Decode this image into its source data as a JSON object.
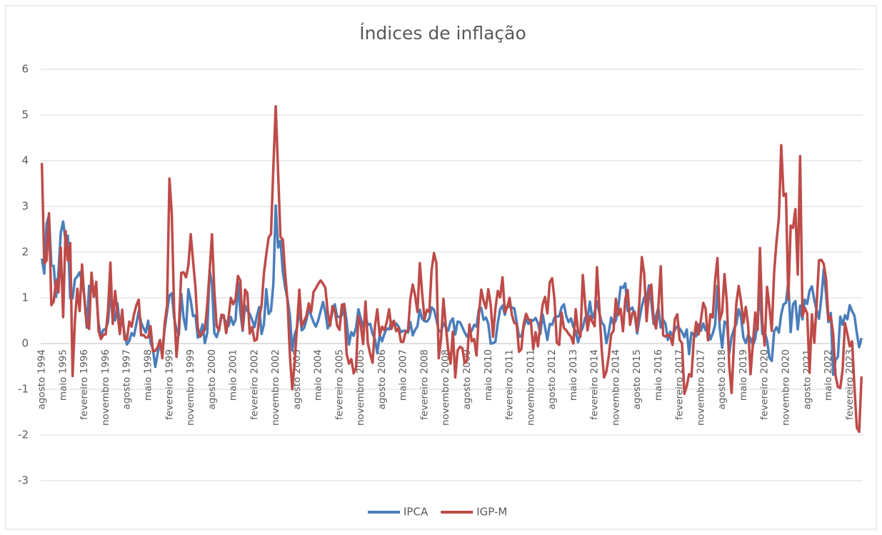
{
  "chart_data": {
    "type": "line",
    "title": "Índices de inflação",
    "categories": [
      "agosto 1994",
      null,
      null,
      null,
      null,
      null,
      null,
      null,
      null,
      "maio 1995",
      null,
      null,
      null,
      null,
      null,
      null,
      null,
      null,
      "fevereiro 1996",
      null,
      null,
      null,
      null,
      null,
      null,
      null,
      null,
      "novembro 1996",
      null,
      null,
      null,
      null,
      null,
      null,
      null,
      null,
      "agosto 1997",
      null,
      null,
      null,
      null,
      null,
      null,
      null,
      null,
      "maio 1998",
      null,
      null,
      null,
      null,
      null,
      null,
      null,
      null,
      "fevereiro 1999",
      null,
      null,
      null,
      null,
      null,
      null,
      null,
      null,
      "novembro 1999",
      null,
      null,
      null,
      null,
      null,
      null,
      null,
      null,
      "agosto 2000",
      null,
      null,
      null,
      null,
      null,
      null,
      null,
      null,
      "maio 2001",
      null,
      null,
      null,
      null,
      null,
      null,
      null,
      null,
      "fevereiro 2002",
      null,
      null,
      null,
      null,
      null,
      null,
      null,
      null,
      "novembro 2002",
      null,
      null,
      null,
      null,
      null,
      null,
      null,
      null,
      "agosto 2003",
      null,
      null,
      null,
      null,
      null,
      null,
      null,
      null,
      "maio 2004",
      null,
      null,
      null,
      null,
      null,
      null,
      null,
      null,
      "fevereiro 2005",
      null,
      null,
      null,
      null,
      null,
      null,
      null,
      null,
      "novembro 2005",
      null,
      null,
      null,
      null,
      null,
      null,
      null,
      null,
      "agosto 2006",
      null,
      null,
      null,
      null,
      null,
      null,
      null,
      null,
      "maio 2007",
      null,
      null,
      null,
      null,
      null,
      null,
      null,
      null,
      "fevereiro 2008",
      null,
      null,
      null,
      null,
      null,
      null,
      null,
      null,
      "novembro 2008",
      null,
      null,
      null,
      null,
      null,
      null,
      null,
      null,
      "agosto 2009",
      null,
      null,
      null,
      null,
      null,
      null,
      null,
      null,
      "maio 2010",
      null,
      null,
      null,
      null,
      null,
      null,
      null,
      null,
      "fevereiro 2011",
      null,
      null,
      null,
      null,
      null,
      null,
      null,
      null,
      "novembro 2011",
      null,
      null,
      null,
      null,
      null,
      null,
      null,
      null,
      "agosto 2012",
      null,
      null,
      null,
      null,
      null,
      null,
      null,
      null,
      "maio 2013",
      null,
      null,
      null,
      null,
      null,
      null,
      null,
      null,
      "fevereiro 2014",
      null,
      null,
      null,
      null,
      null,
      null,
      null,
      null,
      "novembro 2014",
      null,
      null,
      null,
      null,
      null,
      null,
      null,
      null,
      "agosto 2015",
      null,
      null,
      null,
      null,
      null,
      null,
      null,
      null,
      "maio 2016",
      null,
      null,
      null,
      null,
      null,
      null,
      null,
      null,
      "fevereiro 2017",
      null,
      null,
      null,
      null,
      null,
      null,
      null,
      null,
      "novembro 2017",
      null,
      null,
      null,
      null,
      null,
      null,
      null,
      null,
      "agosto 2018",
      null,
      null,
      null,
      null,
      null,
      null,
      null,
      null,
      "maio 2019",
      null,
      null,
      null,
      null,
      null,
      null,
      null,
      null,
      "fevereiro 2020",
      null,
      null,
      null,
      null,
      null,
      null,
      null,
      null,
      "novembro 2020",
      null,
      null,
      null,
      null,
      null,
      null,
      null,
      null,
      "agosto 2021",
      null,
      null,
      null,
      null,
      null,
      null,
      null,
      null,
      "maio 2022",
      null,
      null,
      null,
      null,
      null,
      null,
      null,
      null,
      "fevereiro 2023",
      null,
      null,
      null,
      null,
      null
    ],
    "series": [
      {
        "name": "IPCA",
        "color": "#4a7ebb",
        "values": [
          1.86,
          1.53,
          2.62,
          2.81,
          1.71,
          1.7,
          1.02,
          1.55,
          2.43,
          2.67,
          2.26,
          2.36,
          0.99,
          0.99,
          1.41,
          1.47,
          1.56,
          1.34,
          1.03,
          0.35,
          1.26,
          1.22,
          1.19,
          1.11,
          0.44,
          0.15,
          0.3,
          0.32,
          0.47,
          1.18,
          0.5,
          0.51,
          0.88,
          0.41,
          0.54,
          0.22,
          -0.02,
          0.06,
          0.23,
          0.17,
          0.43,
          0.71,
          0.46,
          0.34,
          0.24,
          0.5,
          0.02,
          -0.12,
          -0.51,
          -0.22,
          0.02,
          -0.12,
          0.33,
          0.7,
          1.05,
          1.1,
          0.56,
          0.3,
          0.19,
          1.09,
          0.56,
          0.31,
          1.19,
          0.95,
          0.6,
          0.62,
          0.13,
          0.22,
          0.42,
          0.01,
          0.23,
          1.61,
          1.31,
          0.23,
          0.14,
          0.32,
          0.59,
          0.57,
          0.46,
          0.38,
          0.58,
          0.41,
          0.52,
          1.33,
          0.7,
          0.28,
          0.83,
          0.71,
          0.65,
          0.52,
          0.36,
          0.6,
          0.8,
          0.21,
          0.42,
          1.19,
          0.65,
          0.72,
          1.31,
          3.02,
          2.1,
          2.25,
          1.57,
          1.23,
          0.97,
          0.61,
          -0.15,
          0.2,
          0.34,
          0.78,
          0.29,
          0.34,
          0.52,
          0.76,
          0.61,
          0.47,
          0.37,
          0.51,
          0.71,
          0.91,
          0.69,
          0.33,
          0.44,
          0.69,
          0.86,
          0.58,
          0.59,
          0.61,
          0.87,
          0.49,
          -0.02,
          0.25,
          0.17,
          0.35,
          0.75,
          0.55,
          0.36,
          0.59,
          0.41,
          0.43,
          0.21,
          0.1,
          -0.21,
          0.19,
          0.05,
          0.21,
          0.33,
          0.31,
          0.48,
          0.44,
          0.44,
          0.37,
          0.25,
          0.28,
          0.28,
          0.24,
          0.47,
          0.18,
          0.3,
          0.38,
          0.74,
          0.54,
          0.49,
          0.48,
          0.55,
          0.79,
          0.74,
          0.53,
          0.28,
          0.26,
          0.45,
          0.36,
          0.28,
          0.48,
          0.55,
          0.2,
          0.48,
          0.47,
          0.36,
          0.24,
          0.15,
          0.24,
          0.28,
          0.41,
          0.37,
          0.75,
          0.78,
          0.52,
          0.57,
          0.43,
          0.0,
          0.01,
          0.04,
          0.45,
          0.75,
          0.83,
          0.63,
          0.83,
          0.8,
          0.79,
          0.77,
          0.47,
          0.15,
          0.16,
          0.37,
          0.53,
          0.43,
          0.52,
          0.5,
          0.56,
          0.45,
          0.21,
          0.64,
          0.36,
          0.08,
          0.43,
          0.41,
          0.57,
          0.59,
          0.6,
          0.79,
          0.86,
          0.6,
          0.47,
          0.55,
          0.37,
          0.26,
          0.03,
          0.24,
          0.35,
          0.57,
          0.54,
          0.92,
          0.55,
          0.69,
          0.92,
          0.67,
          0.46,
          0.4,
          0.01,
          0.25,
          0.57,
          0.42,
          0.51,
          0.78,
          1.24,
          1.22,
          1.32,
          0.71,
          0.74,
          0.79,
          0.62,
          0.22,
          0.54,
          0.82,
          1.01,
          0.96,
          1.27,
          0.9,
          0.43,
          0.61,
          0.78,
          0.35,
          0.52,
          0.44,
          0.08,
          0.26,
          0.18,
          0.3,
          0.38,
          0.33,
          0.25,
          0.14,
          0.31,
          -0.23,
          0.24,
          0.19,
          0.16,
          0.42,
          0.28,
          0.44,
          0.29,
          0.32,
          0.09,
          0.22,
          0.4,
          1.26,
          0.33,
          -0.09,
          0.48,
          0.45,
          -0.21,
          0.15,
          0.32,
          0.43,
          0.75,
          0.57,
          0.13,
          0.01,
          0.19,
          0.11,
          -0.04,
          0.1,
          0.51,
          1.15,
          0.21,
          0.25,
          0.07,
          -0.31,
          -0.38,
          0.26,
          0.36,
          0.24,
          0.64,
          0.86,
          0.89,
          1.35,
          0.25,
          0.86,
          0.93,
          0.31,
          0.83,
          0.53,
          0.96,
          0.87,
          1.16,
          1.25,
          0.95,
          0.73,
          0.54,
          1.01,
          1.62,
          1.06,
          0.47,
          0.67,
          -0.68,
          -0.36,
          -0.29,
          0.59,
          0.41,
          0.62,
          0.53,
          0.84,
          0.71,
          0.61,
          0.23,
          -0.08,
          0.12
        ]
      },
      {
        "name": "IGP-M",
        "color": "#be4b48",
        "values": [
          3.95,
          1.75,
          1.82,
          2.85,
          0.84,
          0.92,
          1.39,
          1.12,
          2.1,
          0.58,
          2.46,
          1.82,
          2.2,
          -0.71,
          0.52,
          1.2,
          0.71,
          1.73,
          0.97,
          0.4,
          0.32,
          1.55,
          1.02,
          1.35,
          0.28,
          0.1,
          0.19,
          0.2,
          0.73,
          1.77,
          0.43,
          1.15,
          0.68,
          0.21,
          0.74,
          0.09,
          0.09,
          0.48,
          0.37,
          0.64,
          0.84,
          0.96,
          0.18,
          0.19,
          0.13,
          0.14,
          0.38,
          -0.17,
          -0.16,
          -0.08,
          0.08,
          -0.32,
          0.45,
          0.84,
          3.61,
          2.83,
          0.71,
          -0.29,
          0.36,
          1.55,
          1.56,
          1.45,
          1.7,
          2.39,
          1.81,
          1.24,
          0.35,
          0.15,
          0.23,
          0.31,
          0.85,
          1.57,
          2.39,
          1.16,
          0.38,
          0.29,
          0.63,
          0.62,
          0.23,
          0.56,
          1.0,
          0.86,
          0.98,
          1.48,
          1.38,
          0.31,
          1.18,
          1.1,
          0.22,
          0.36,
          0.06,
          0.09,
          0.56,
          0.83,
          1.54,
          1.95,
          2.32,
          2.4,
          3.87,
          5.19,
          3.75,
          2.33,
          2.28,
          1.53,
          0.92,
          -0.26,
          -1.0,
          -0.42,
          0.38,
          1.18,
          0.38,
          0.49,
          0.61,
          0.88,
          0.69,
          1.13,
          1.21,
          1.31,
          1.38,
          1.31,
          1.22,
          0.69,
          0.39,
          0.82,
          0.74,
          0.39,
          0.3,
          0.85,
          0.86,
          -0.22,
          -0.44,
          -0.34,
          -0.65,
          -0.53,
          0.6,
          0.4,
          -0.01,
          0.92,
          0.01,
          -0.23,
          -0.42,
          0.38,
          0.75,
          0.18,
          0.37,
          0.29,
          0.47,
          0.75,
          0.32,
          0.5,
          0.27,
          0.34,
          0.04,
          0.04,
          0.26,
          0.28,
          0.98,
          1.29,
          1.05,
          0.69,
          1.76,
          1.09,
          0.53,
          0.74,
          0.69,
          1.61,
          1.98,
          1.76,
          -0.32,
          0.11,
          0.98,
          0.38,
          -0.13,
          -0.44,
          0.26,
          -0.74,
          -0.15,
          -0.07,
          -0.1,
          -0.43,
          -0.36,
          0.42,
          0.05,
          0.1,
          -0.26,
          0.63,
          1.18,
          0.94,
          0.77,
          1.19,
          0.85,
          0.15,
          0.77,
          1.15,
          1.01,
          1.45,
          0.69,
          0.79,
          1.0,
          0.62,
          0.45,
          0.43,
          -0.18,
          -0.12,
          0.44,
          0.65,
          0.53,
          0.5,
          -0.12,
          0.25,
          -0.06,
          0.43,
          0.85,
          1.02,
          0.66,
          1.34,
          1.43,
          0.97,
          0.02,
          -0.03,
          0.68,
          0.34,
          0.29,
          0.21,
          0.15,
          0.0,
          0.75,
          0.26,
          0.15,
          1.5,
          0.86,
          0.29,
          0.6,
          0.48,
          0.38,
          1.67,
          0.78,
          -0.13,
          -0.74,
          -0.61,
          -0.27,
          0.2,
          0.28,
          0.98,
          0.62,
          0.76,
          0.27,
          0.98,
          1.17,
          0.41,
          0.67,
          0.69,
          0.28,
          0.95,
          1.89,
          1.52,
          0.49,
          1.14,
          1.29,
          0.51,
          0.33,
          0.82,
          1.69,
          0.18,
          0.15,
          0.2,
          0.16,
          -0.03,
          0.54,
          0.64,
          0.08,
          0.01,
          -1.1,
          -0.93,
          -0.67,
          -0.72,
          0.1,
          0.47,
          0.2,
          0.52,
          0.89,
          0.76,
          0.07,
          0.64,
          0.57,
          1.38,
          1.87,
          0.51,
          0.7,
          1.52,
          0.89,
          -0.49,
          -1.08,
          0.01,
          0.88,
          1.26,
          0.92,
          0.45,
          0.8,
          0.4,
          -0.67,
          -0.01,
          0.68,
          0.3,
          2.09,
          0.48,
          -0.04,
          1.24,
          0.8,
          0.28,
          1.56,
          2.23,
          2.74,
          4.34,
          3.23,
          3.28,
          0.96,
          2.58,
          2.53,
          2.94,
          1.51,
          4.1,
          0.6,
          0.78,
          0.66,
          -0.64,
          0.64,
          0.02,
          0.87,
          1.82,
          1.83,
          1.74,
          1.41,
          0.52,
          0.59,
          0.21,
          -0.7,
          -0.95,
          -0.97,
          -0.56,
          0.45,
          0.21,
          -0.06,
          0.05,
          -0.95,
          -1.84,
          -1.93,
          -0.72
        ]
      }
    ],
    "ylim": [
      -3,
      6
    ],
    "yticks": [
      -3,
      -2,
      -1,
      0,
      1,
      2,
      3,
      4,
      5,
      6
    ],
    "grid": true,
    "legend": "bottom"
  }
}
